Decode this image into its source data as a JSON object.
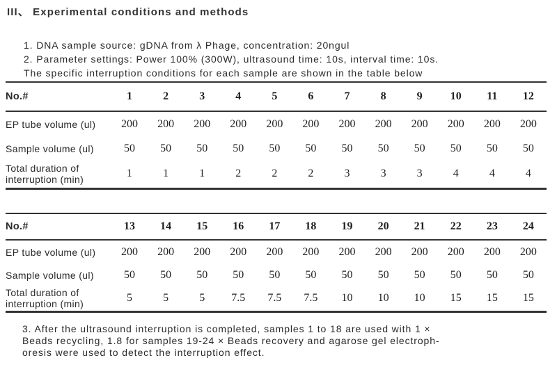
{
  "colors": {
    "text": "#262626",
    "rule": "#333333",
    "background": "#ffffff"
  },
  "heading": {
    "label": "III、 Experimental conditions and methods"
  },
  "intro": {
    "lines": [
      "1. DNA sample source: gDNA from λ Phage, concentration: 20ngul",
      "2. Parameter settings: Power 100% (300W), ultrasound time: 10s, interval time: 10s.",
      "The specific interruption conditions for each sample are shown in the table below"
    ]
  },
  "tables": [
    {
      "header_label": "No.#",
      "columns": [
        "1",
        "2",
        "3",
        "4",
        "5",
        "6",
        "7",
        "8",
        "9",
        "10",
        "11",
        "12"
      ],
      "rows": [
        {
          "label": "EP tube volume (ul)",
          "values": [
            "200",
            "200",
            "200",
            "200",
            "200",
            "200",
            "200",
            "200",
            "200",
            "200",
            "200",
            "200"
          ]
        },
        {
          "label": "Sample volume (ul)",
          "values": [
            "50",
            "50",
            "50",
            "50",
            "50",
            "50",
            "50",
            "50",
            "50",
            "50",
            "50",
            "50"
          ]
        },
        {
          "label": "Total duration of interruption (min)",
          "values": [
            "1",
            "1",
            "1",
            "2",
            "2",
            "2",
            "3",
            "3",
            "3",
            "4",
            "4",
            "4"
          ]
        }
      ]
    },
    {
      "header_label": "No.#",
      "columns": [
        "13",
        "14",
        "15",
        "16",
        "17",
        "18",
        "19",
        "20",
        "21",
        "22",
        "23",
        "24"
      ],
      "rows": [
        {
          "label": "EP tube volume (ul)",
          "values": [
            "200",
            "200",
            "200",
            "200",
            "200",
            "200",
            "200",
            "200",
            "200",
            "200",
            "200",
            "200"
          ]
        },
        {
          "label": "Sample volume (ul)",
          "values": [
            "50",
            "50",
            "50",
            "50",
            "50",
            "50",
            "50",
            "50",
            "50",
            "50",
            "50",
            "50"
          ]
        },
        {
          "label": "Total duration of interruption (min)",
          "values": [
            "5",
            "5",
            "5",
            "7.5",
            "7.5",
            "7.5",
            "10",
            "10",
            "10",
            "15",
            "15",
            "15"
          ]
        }
      ]
    }
  ],
  "footer": {
    "lines": [
      "3. After the ultrasound interruption is completed, samples 1 to 18 are used with 1 ×",
      "Beads recycling, 1.8 for samples 19-24 ×  Beads recovery and agarose gel electroph-",
      "oresis were used to detect the interruption effect."
    ]
  }
}
